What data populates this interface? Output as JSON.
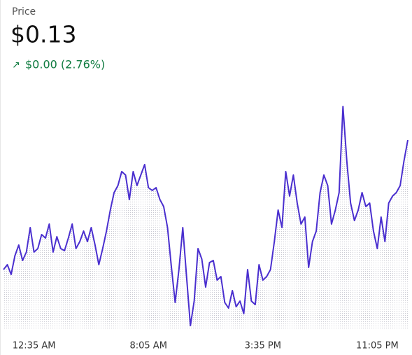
{
  "chart_data": {
    "type": "line",
    "title": "Price",
    "price": "$0.13",
    "change": "$0.00 (2.76%)",
    "change_color": "#107c41",
    "categories": [
      null,
      null,
      null,
      null,
      null,
      null,
      null,
      null,
      "12:35 AM",
      null,
      null,
      null,
      null,
      null,
      null,
      null,
      null,
      null,
      null,
      null,
      null,
      null,
      null,
      null,
      null,
      null,
      null,
      null,
      null,
      null,
      null,
      null,
      null,
      null,
      null,
      null,
      null,
      null,
      "8:05 AM",
      null,
      null,
      null,
      null,
      null,
      null,
      null,
      null,
      null,
      null,
      null,
      null,
      null,
      null,
      null,
      null,
      null,
      null,
      null,
      null,
      null,
      null,
      null,
      null,
      null,
      null,
      null,
      null,
      null,
      "3:35 PM",
      null,
      null,
      null,
      null,
      null,
      null,
      null,
      null,
      null,
      null,
      null,
      null,
      null,
      null,
      null,
      null,
      null,
      null,
      null,
      null,
      null,
      null,
      null,
      null,
      null,
      null,
      null,
      null,
      null,
      "11:05 PM",
      null,
      null,
      null,
      null,
      null,
      null,
      null,
      null
    ],
    "series": [
      {
        "name": "Price",
        "color": "#4a2fcf",
        "values": [
          0.1264,
          0.12654,
          0.12626,
          0.1268,
          0.1271,
          0.12666,
          0.1269,
          0.1276,
          0.1269,
          0.127,
          0.1274,
          0.1273,
          0.1277,
          0.1269,
          0.12734,
          0.127,
          0.12694,
          0.1273,
          0.1277,
          0.127,
          0.1272,
          0.1275,
          0.1272,
          0.1276,
          0.1271,
          0.12654,
          0.127,
          0.1275,
          0.1281,
          0.1286,
          0.1288,
          0.1292,
          0.1291,
          0.1284,
          0.1292,
          0.1288,
          0.1291,
          0.1294,
          0.12874,
          0.12866,
          0.12874,
          0.1284,
          0.1282,
          0.1276,
          0.1265,
          0.12546,
          0.1264,
          0.1276,
          0.1262,
          0.1248,
          0.1255,
          0.127,
          0.1267,
          0.1259,
          0.1266,
          0.12666,
          0.1261,
          0.1262,
          0.12546,
          0.1253,
          0.1258,
          0.12534,
          0.1255,
          0.12514,
          0.1264,
          0.1255,
          0.1254,
          0.12654,
          0.1261,
          0.1262,
          0.1264,
          0.1272,
          0.1281,
          0.1276,
          0.1292,
          0.1285,
          0.1291,
          0.1283,
          0.1277,
          0.1279,
          0.12646,
          0.1272,
          0.1275,
          0.1286,
          0.1291,
          0.1288,
          0.1277,
          0.1281,
          0.1286,
          0.13106,
          0.1295,
          0.1283,
          0.1278,
          0.1281,
          0.1286,
          0.1282,
          0.1283,
          0.1275,
          0.127,
          0.1279,
          0.1272,
          0.1283,
          0.1285,
          0.1286,
          0.1288,
          0.1295,
          0.1301
        ]
      }
    ],
    "ylim": [
      0.1247,
      0.1313
    ],
    "area_fill": true
  }
}
